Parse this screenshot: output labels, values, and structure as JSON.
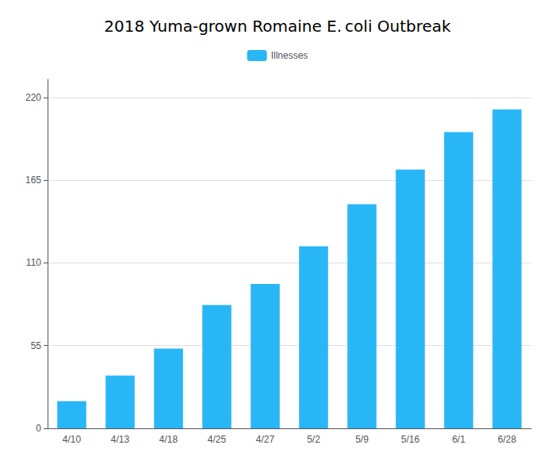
{
  "chart_data": {
    "type": "bar",
    "title": "2018 Yuma-grown Romaine E. coli Outbreak",
    "categories": [
      "4/10",
      "4/13",
      "4/18",
      "4/25",
      "4/27",
      "5/2",
      "5/9",
      "5/16",
      "6/1",
      "6/28"
    ],
    "series": [
      {
        "name": "Illnesses",
        "color": "#29b6f6",
        "values": [
          18,
          35,
          53,
          82,
          96,
          121,
          149,
          172,
          197,
          212
        ]
      }
    ],
    "ylim": [
      0,
      232
    ],
    "yticks": [
      0,
      55,
      110,
      165,
      220
    ],
    "grid": true,
    "legend": "top"
  }
}
